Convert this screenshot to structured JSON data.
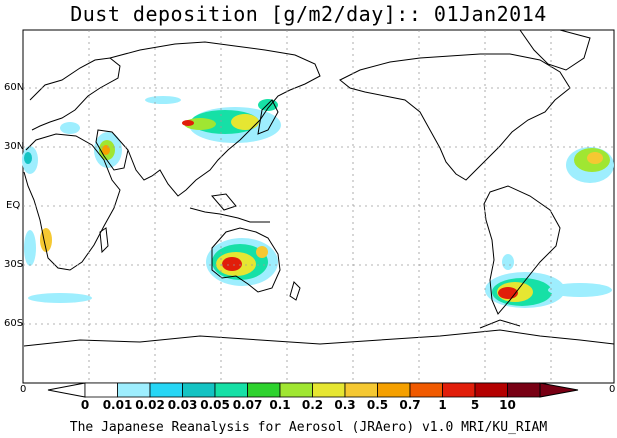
{
  "title": "Dust deposition [g/m2/day]:: 01Jan2014",
  "footer": "The Japanese Reanalysis for Aerosol (JRAero) v1.0 MRI/KU_RIAM",
  "lat_labels": [
    "60N",
    "30N",
    "EQ",
    "30S",
    "60S"
  ],
  "lon_edge_labels": [
    "0",
    "0"
  ],
  "colorbar": {
    "labels": [
      "0",
      "0.01",
      "0.02",
      "0.03",
      "0.05",
      "0.07",
      "0.1",
      "0.2",
      "0.3",
      "0.5",
      "0.7",
      "1",
      "5",
      "10"
    ],
    "colors": [
      "#ffffff",
      "#9eeefe",
      "#27d6f5",
      "#14c3c3",
      "#16e0a6",
      "#2ed22e",
      "#a0e632",
      "#e6e632",
      "#f5c832",
      "#f5a000",
      "#f05a00",
      "#e11e0a",
      "#b40000",
      "#780014"
    ]
  },
  "colors": {
    "land_outline": "#000000",
    "grid": "#888888",
    "background": "#ffffff"
  }
}
